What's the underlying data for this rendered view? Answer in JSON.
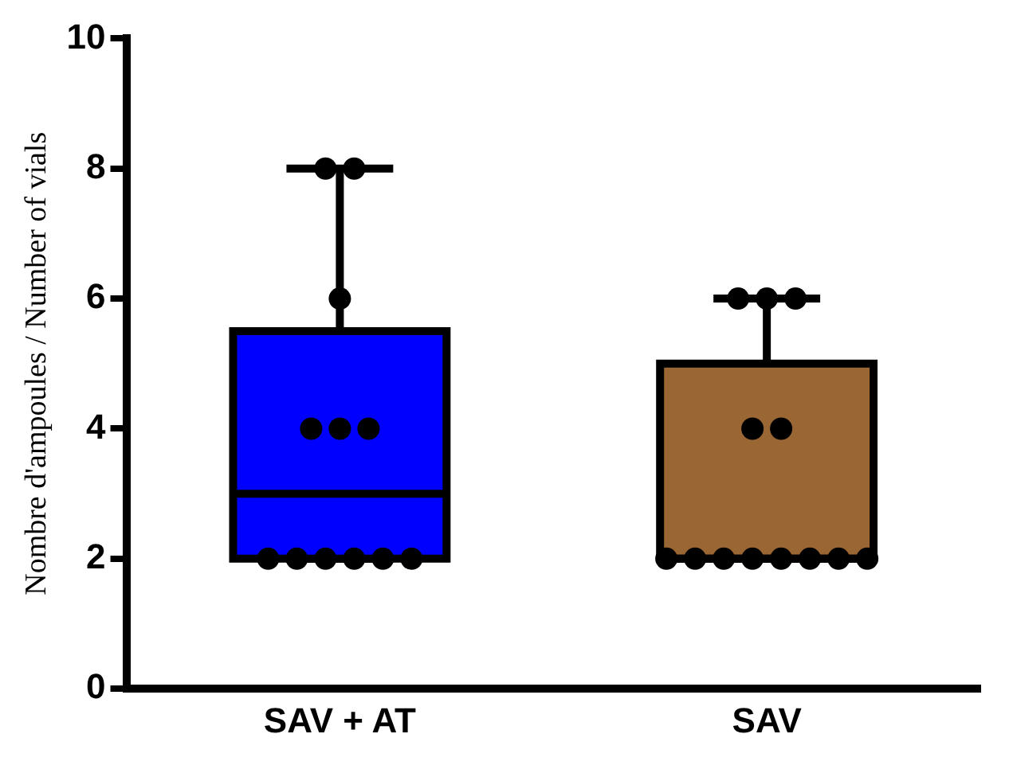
{
  "chart_data": {
    "type": "box",
    "ylabel": "Nombre d'ampoules / Number of vials",
    "categories": [
      "SAV + AT",
      "SAV"
    ],
    "colors": [
      "#0000ff",
      "#9a6634"
    ],
    "boxes": [
      {
        "low": 2,
        "q1": 2,
        "median": 3,
        "q3": 5.5,
        "high": 8
      },
      {
        "low": 2,
        "q1": 2,
        "median": 2,
        "q3": 5,
        "high": 6
      }
    ],
    "series": [
      {
        "type": "scatter",
        "color": "#000000",
        "x": [
          "SAV + AT",
          "SAV + AT",
          "SAV + AT",
          "SAV + AT",
          "SAV + AT",
          "SAV + AT",
          "SAV + AT",
          "SAV + AT",
          "SAV + AT",
          "SAV + AT",
          "SAV + AT",
          "SAV + AT",
          "SAV",
          "SAV",
          "SAV",
          "SAV",
          "SAV",
          "SAV",
          "SAV",
          "SAV",
          "SAV",
          "SAV",
          "SAV",
          "SAV",
          "SAV"
        ],
        "values": [
          8,
          8,
          6,
          4,
          4,
          4,
          2,
          2,
          2,
          2,
          2,
          2,
          6,
          6,
          6,
          4,
          4,
          2,
          2,
          2,
          2,
          2,
          2,
          2,
          2
        ]
      }
    ],
    "ylim": [
      0,
      10
    ],
    "yticks": [
      0,
      2,
      4,
      6,
      8,
      10
    ],
    "grid": false,
    "legend": false,
    "marker": "circle"
  }
}
